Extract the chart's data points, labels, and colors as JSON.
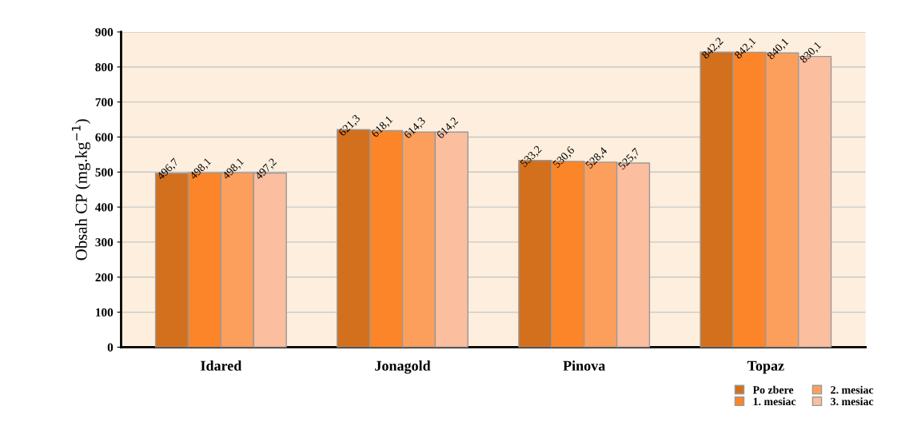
{
  "chart_data": {
    "type": "bar",
    "ylabel": "Obsah CP (mg.kg$^{−1}$)",
    "categories": [
      "Idared",
      "Jonagold",
      "Pinova",
      "Topaz"
    ],
    "series": [
      {
        "name": "Po zbere",
        "color": "#d2701e",
        "values": [
          496.7,
          621.3,
          533.2,
          842.2
        ],
        "value_labels": [
          "496,7",
          "621,3",
          "533,2",
          "842,2"
        ]
      },
      {
        "name": "1. mesiac",
        "color": "#fb8528",
        "values": [
          498.1,
          618.1,
          530.6,
          842.1
        ],
        "value_labels": [
          "498,1",
          "618,1",
          "530,6",
          "842,1"
        ]
      },
      {
        "name": "2. mesiac",
        "color": "#fd9f5c",
        "values": [
          498.1,
          614.3,
          528.4,
          840.1
        ],
        "value_labels": [
          "498,1",
          "614,3",
          "528,4",
          "840,1"
        ]
      },
      {
        "name": "3. mesiac",
        "color": "#fbbe9f",
        "values": [
          497.2,
          614.2,
          525.7,
          830.1
        ],
        "value_labels": [
          "497,2",
          "614,2",
          "525,7",
          "830,1"
        ]
      }
    ],
    "ylim": [
      0,
      900
    ],
    "yticks": [
      0,
      100,
      200,
      300,
      400,
      500,
      600,
      700,
      800,
      900
    ],
    "grid": "y",
    "legend": "bottom right"
  }
}
